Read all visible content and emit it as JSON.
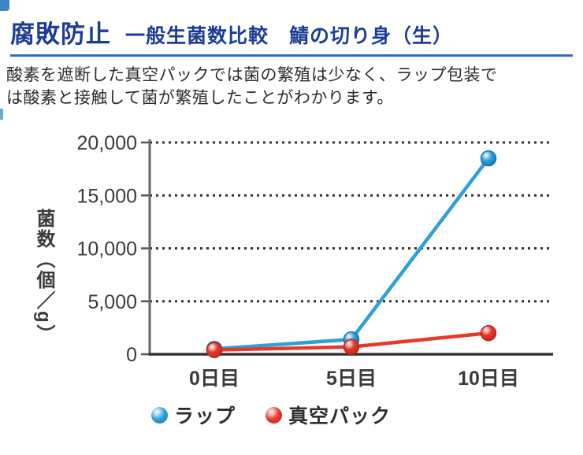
{
  "page": {
    "title_main": "腐敗防止",
    "title_sub": "一般生菌数比較　鯖の切り身（生）",
    "description_lines": [
      "酸素を遮断した真空パックでは菌の繁殖は少なく、ラップ包装で",
      "は酸素と接触して菌が繁殖したことがわかります。"
    ],
    "accent_navy": "#1d3d96",
    "rule_blue": "#2a6db8"
  },
  "chart_data": {
    "type": "line",
    "title": "一般生菌数比較　鯖の切り身（生）",
    "categories": [
      "0日目",
      "5日目",
      "10日目"
    ],
    "series": [
      {
        "name": "ラップ",
        "color": "#2e9fd9",
        "edge_color": "#0d76b6",
        "values": [
          500,
          1400,
          18500
        ]
      },
      {
        "name": "真空パック",
        "color": "#e8382b",
        "edge_color": "#b5281c",
        "values": [
          400,
          700,
          2000
        ]
      }
    ],
    "ylabel": "菌数（個／g）",
    "ylim": [
      0,
      20000
    ],
    "yticks": [
      0,
      5000,
      10000,
      15000,
      20000
    ],
    "ytick_labels": [
      "0",
      "5,000",
      "10,000",
      "15,000",
      "20,000"
    ],
    "grid": "dotted-horizontal",
    "legend_position": "bottom"
  }
}
